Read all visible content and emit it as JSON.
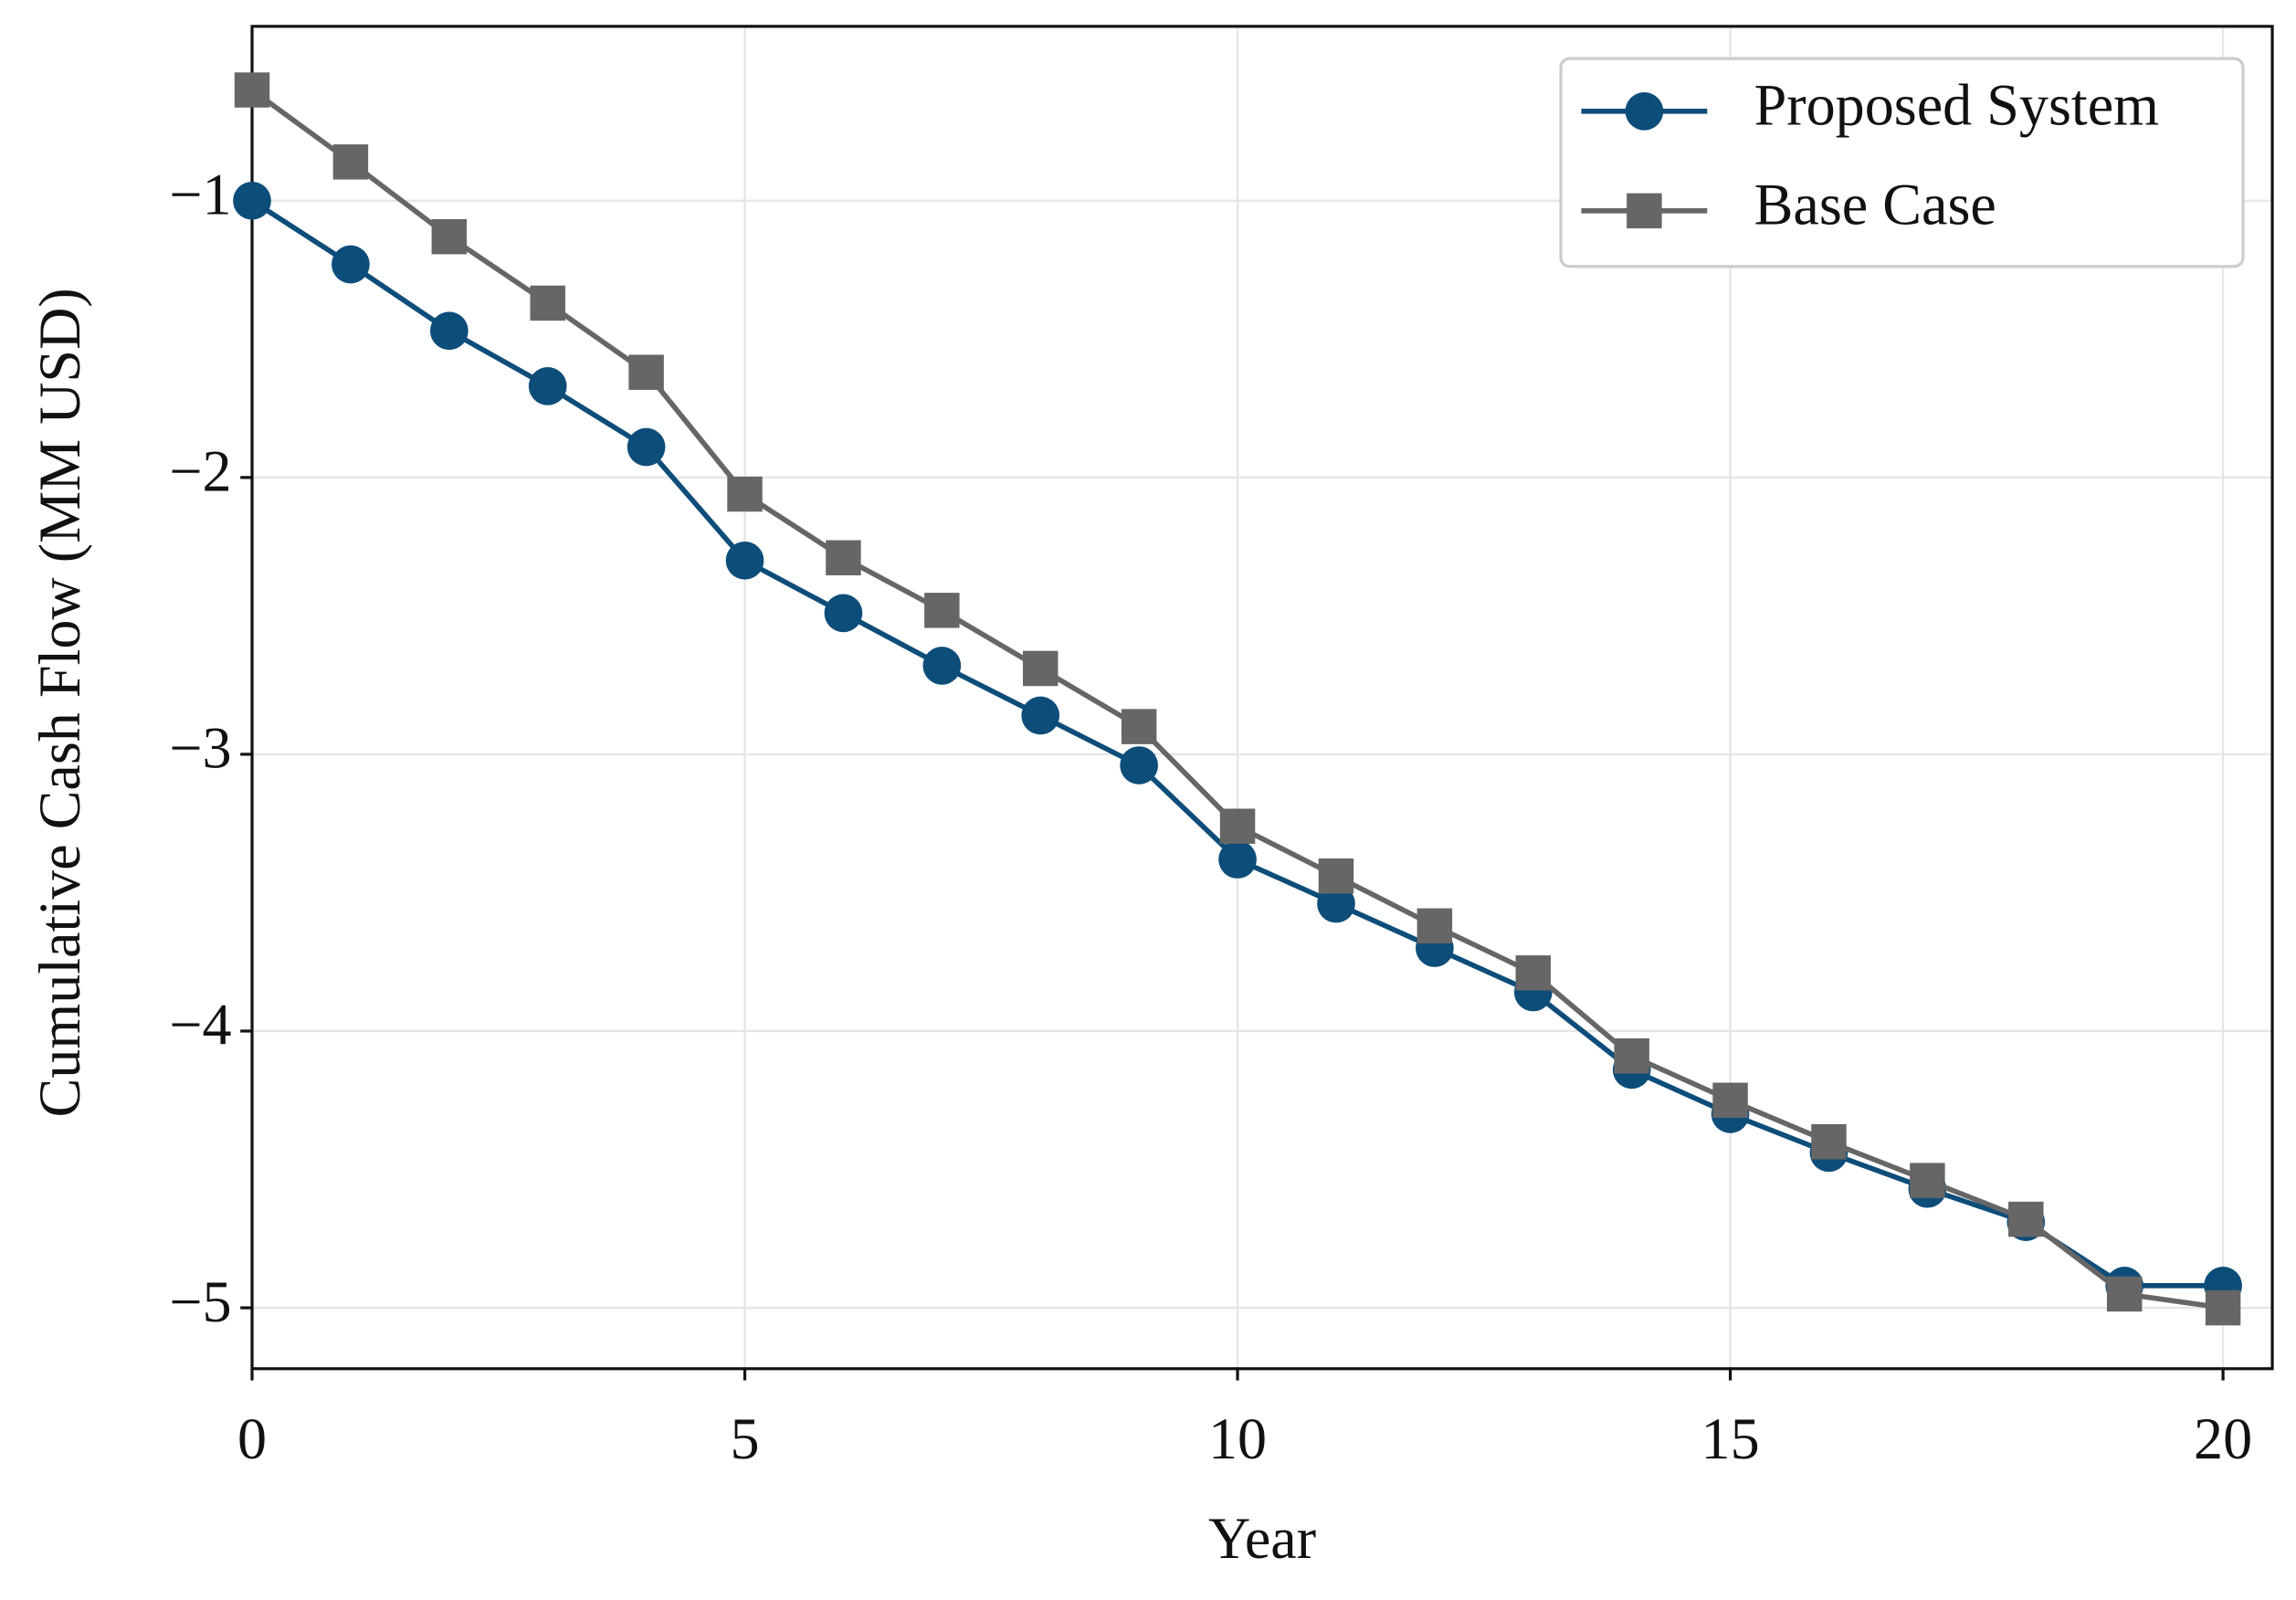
{
  "chart_data": {
    "type": "line",
    "x_label": "Year",
    "y_label": "Cumulative Cash Flow (MM USD)",
    "x": [
      0,
      1,
      2,
      3,
      4,
      5,
      6,
      7,
      8,
      9,
      10,
      11,
      12,
      13,
      14,
      15,
      16,
      17,
      18,
      19,
      20
    ],
    "series": [
      {
        "name": "Proposed System",
        "color": "#0d4d7a",
        "marker": "circle",
        "values": [
          -1.0,
          -1.23,
          -1.47,
          -1.67,
          -1.89,
          -2.3,
          -2.49,
          -2.68,
          -2.86,
          -3.04,
          -3.38,
          -3.54,
          -3.7,
          -3.86,
          -4.14,
          -4.3,
          -4.44,
          -4.57,
          -4.69,
          -4.92,
          -4.92
        ]
      },
      {
        "name": "Base Case",
        "color": "#666666",
        "marker": "square",
        "values": [
          -0.6,
          -0.86,
          -1.13,
          -1.37,
          -1.62,
          -2.06,
          -2.29,
          -2.48,
          -2.69,
          -2.9,
          -3.26,
          -3.44,
          -3.62,
          -3.79,
          -4.09,
          -4.25,
          -4.4,
          -4.54,
          -4.68,
          -4.95,
          -5.0
        ]
      }
    ],
    "xlim": [
      0,
      20.5
    ],
    "ylim": [
      -5.22,
      -0.37
    ],
    "xticks": [
      0,
      5,
      10,
      15,
      20
    ],
    "yticks": [
      {
        "value": -1,
        "label": "−1"
      },
      {
        "value": -2,
        "label": "−2"
      },
      {
        "value": -3,
        "label": "−3"
      },
      {
        "value": -4,
        "label": "−4"
      },
      {
        "value": -5,
        "label": "−5"
      }
    ],
    "grid": true,
    "legend": "upper right"
  }
}
